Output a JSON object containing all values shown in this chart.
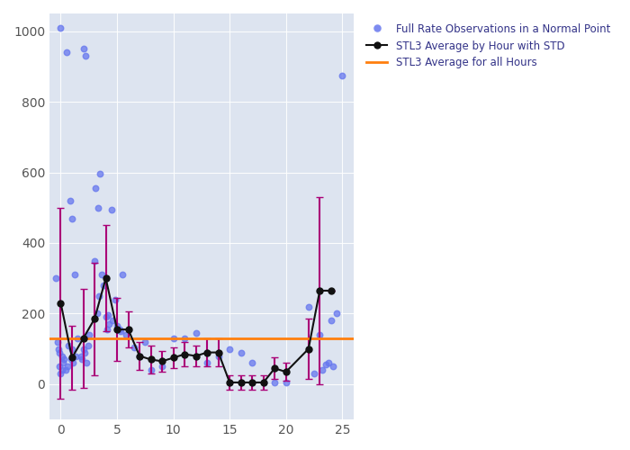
{
  "scatter_x": [
    -0.4,
    -0.2,
    0.0,
    0.1,
    0.2,
    -0.3,
    0.0,
    0.15,
    -0.1,
    0.3,
    -0.1,
    0.5,
    0.8,
    1.0,
    1.2,
    1.5,
    1.0,
    0.7,
    1.3,
    0.9,
    1.1,
    0.6,
    0.4,
    1.8,
    2.0,
    2.2,
    2.5,
    2.0,
    1.9,
    2.3,
    2.1,
    2.4,
    3.0,
    3.2,
    3.5,
    3.1,
    3.3,
    3.8,
    3.6,
    3.4,
    4.0,
    4.2,
    4.5,
    4.1,
    4.8,
    4.3,
    4.6,
    5.0,
    5.2,
    5.5,
    5.8,
    5.3,
    6.5,
    7.0,
    7.5,
    8.0,
    9.0,
    10.0,
    11.0,
    12.0,
    13.0,
    14.0,
    15.0,
    16.0,
    17.0,
    18.0,
    19.0,
    20.0,
    22.0,
    23.0,
    24.0,
    23.5,
    24.5,
    23.8,
    24.2,
    23.2,
    22.5,
    25.0
  ],
  "scatter_y": [
    300,
    100,
    1010,
    80,
    60,
    120,
    30,
    40,
    90,
    70,
    50,
    940,
    520,
    470,
    310,
    130,
    100,
    110,
    80,
    70,
    60,
    50,
    40,
    80,
    950,
    930,
    140,
    100,
    70,
    60,
    90,
    110,
    350,
    200,
    595,
    555,
    500,
    280,
    310,
    250,
    190,
    195,
    495,
    155,
    240,
    170,
    180,
    165,
    155,
    310,
    140,
    150,
    105,
    80,
    120,
    40,
    50,
    130,
    130,
    145,
    60,
    80,
    100,
    90,
    60,
    5,
    5,
    5,
    220,
    140,
    180,
    55,
    200,
    60,
    50,
    40,
    30,
    875
  ],
  "avg_x": [
    0,
    1,
    2,
    3,
    4,
    5,
    6,
    7,
    8,
    9,
    10,
    11,
    12,
    13,
    14,
    15,
    16,
    17,
    18,
    19,
    20,
    22,
    23,
    24
  ],
  "avg_y": [
    230,
    75,
    130,
    185,
    300,
    155,
    155,
    80,
    70,
    65,
    75,
    85,
    80,
    90,
    90,
    5,
    5,
    5,
    5,
    45,
    35,
    100,
    265,
    265
  ],
  "std_y": [
    270,
    90,
    140,
    160,
    150,
    90,
    50,
    40,
    40,
    30,
    30,
    35,
    30,
    40,
    40,
    20,
    20,
    20,
    20,
    30,
    25,
    85,
    265,
    0
  ],
  "overall_avg": 130,
  "scatter_color": "#6677ee",
  "avg_line_color": "#111111",
  "overall_avg_color": "#ff7f0e",
  "std_color": "#aa0077",
  "bg_color": "#dde4f0",
  "ylim": [
    -100,
    1050
  ],
  "xlim": [
    -1,
    26
  ],
  "legend_labels": [
    "Full Rate Observations in a Normal Point",
    "STL3 Average by Hour with STD",
    "STL3 Average for all Hours"
  ],
  "legend_text_color": "#333388",
  "figsize": [
    7.0,
    5.0
  ],
  "dpi": 100
}
